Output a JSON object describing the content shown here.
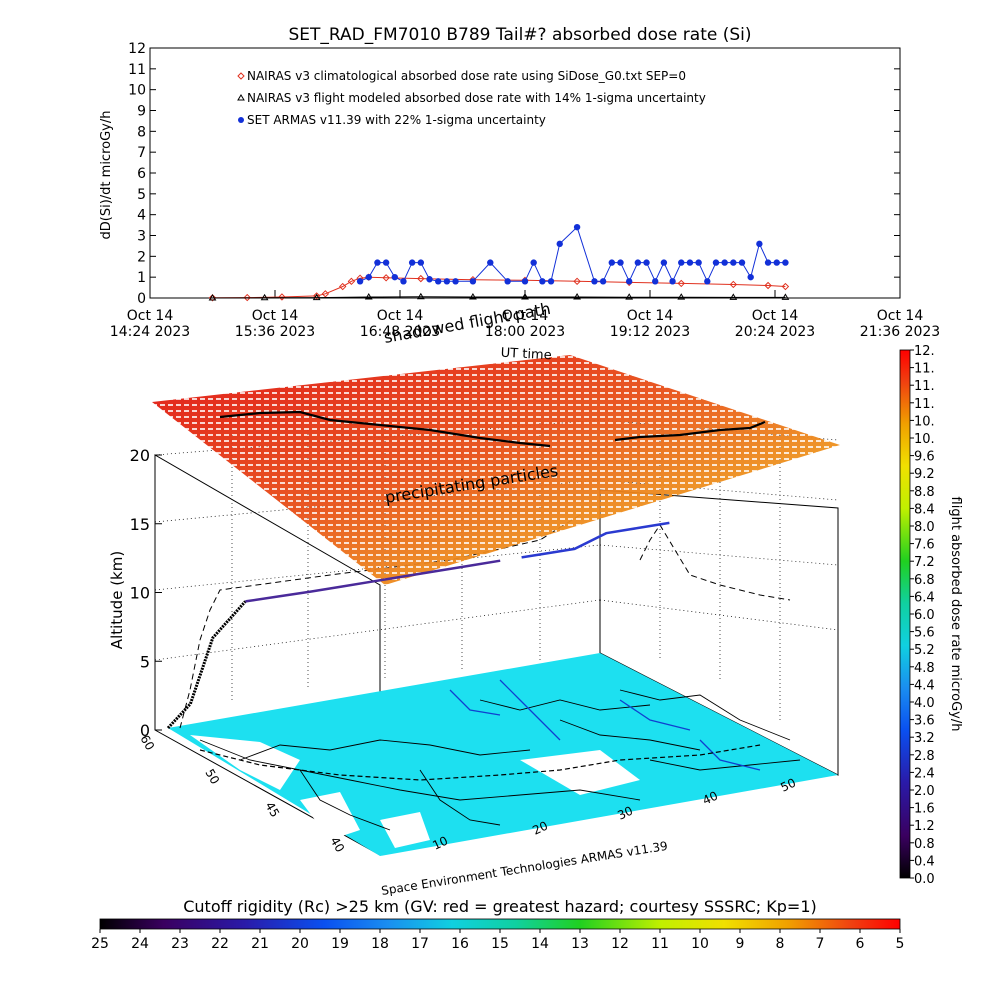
{
  "chart_data": [
    {
      "type": "scatter",
      "title": "SET_RAD_FM7010  B789 Tail#? absorbed dose rate (Si)",
      "ylabel": "dD(Si)/dt microGy/h",
      "ylim": [
        0,
        12
      ],
      "y_ticks": [
        "0",
        "1",
        "2",
        "3",
        "4",
        "5",
        "6",
        "7",
        "8",
        "9",
        "10",
        "11",
        "12"
      ],
      "xlim": [
        "14:24",
        "21:36"
      ],
      "x_ticks": [
        {
          "line1": "Oct 14",
          "line2": "14:24 2023"
        },
        {
          "line1": "Oct 14",
          "line2": "15:36 2023"
        },
        {
          "line1": "Oct 14",
          "line2": "16:48 2023"
        },
        {
          "line1": "Oct 14",
          "line2": "18:00 2023"
        },
        {
          "line1": "Oct 14",
          "line2": "19:12 2023"
        },
        {
          "line1": "Oct 14",
          "line2": "20:24 2023"
        },
        {
          "line1": "Oct 14",
          "line2": "21:36 2023"
        }
      ],
      "legend_position": "top-left",
      "series": [
        {
          "name": "NAIRAS v3 climatological absorbed dose rate using SiDose_G0.txt SEP=0",
          "color": "#e0301e",
          "marker": "diamond",
          "x": [
            "15:00",
            "15:20",
            "15:40",
            "16:00",
            "16:05",
            "16:15",
            "16:20",
            "16:25",
            "16:30",
            "16:40",
            "17:00",
            "17:30",
            "18:00",
            "18:30",
            "19:00",
            "19:30",
            "20:00",
            "20:20",
            "20:30"
          ],
          "y": [
            0.01,
            0.02,
            0.05,
            0.1,
            0.2,
            0.55,
            0.8,
            0.95,
            1.0,
            0.97,
            0.93,
            0.88,
            0.85,
            0.8,
            0.75,
            0.7,
            0.65,
            0.6,
            0.55
          ]
        },
        {
          "name": "NAIRAS v3 flight modeled absorbed dose rate with 14% 1-sigma uncertainty",
          "color": "#000000",
          "marker": "triangle",
          "x": [
            "15:00",
            "15:30",
            "16:00",
            "16:30",
            "17:00",
            "17:30",
            "18:00",
            "18:30",
            "19:00",
            "19:30",
            "20:00",
            "20:30"
          ],
          "y": [
            0.0,
            0.01,
            0.02,
            0.05,
            0.06,
            0.05,
            0.05,
            0.05,
            0.04,
            0.04,
            0.03,
            0.03
          ]
        },
        {
          "name": "SET ARMAS v11.39 with 22% 1-sigma uncertainty",
          "color": "#1230d8",
          "marker": "dot",
          "x": [
            "16:25",
            "16:30",
            "16:35",
            "16:40",
            "16:45",
            "16:50",
            "16:55",
            "17:00",
            "17:05",
            "17:10",
            "17:15",
            "17:20",
            "17:30",
            "17:40",
            "17:50",
            "18:00",
            "18:05",
            "18:10",
            "18:15",
            "18:20",
            "18:30",
            "18:40",
            "18:45",
            "18:50",
            "18:55",
            "19:00",
            "19:05",
            "19:10",
            "19:15",
            "19:20",
            "19:25",
            "19:30",
            "19:35",
            "19:40",
            "19:45",
            "19:50",
            "19:55",
            "20:00",
            "20:05",
            "20:10",
            "20:15",
            "20:20",
            "20:25",
            "20:30"
          ],
          "y": [
            0.8,
            1.0,
            1.7,
            1.7,
            1.0,
            0.8,
            1.7,
            1.7,
            0.9,
            0.8,
            0.8,
            0.8,
            0.8,
            1.7,
            0.8,
            0.8,
            1.7,
            0.8,
            0.8,
            2.6,
            3.4,
            0.8,
            0.8,
            1.7,
            1.7,
            0.8,
            1.7,
            1.7,
            0.8,
            1.7,
            0.8,
            1.7,
            1.7,
            1.7,
            0.8,
            1.7,
            1.7,
            1.7,
            1.7,
            1.0,
            2.6,
            1.7,
            1.7,
            1.7
          ]
        }
      ]
    },
    {
      "type": "scatter3d",
      "overlay_labels": [
        "shadowed flight path",
        "precipitating particles"
      ],
      "timeline_label": "UT time",
      "z_label": "Altitude (km)",
      "z_ticks": [
        "0",
        "5",
        "10",
        "15",
        "20"
      ],
      "lat_ticks": [
        "60",
        "50",
        "45",
        "40"
      ],
      "lon_ticks": [
        "10",
        "20",
        "30",
        "40",
        "50"
      ],
      "credit": "Space Environment Technologies ARMAS v11.39",
      "flight_path": {
        "lon": [
          5,
          7,
          9,
          12,
          15,
          18,
          21,
          24,
          27,
          30,
          33,
          36,
          38,
          40,
          43,
          46,
          49,
          52
        ],
        "lat": [
          52,
          51,
          50,
          49,
          48,
          47,
          46.5,
          46,
          45.5,
          45,
          44.5,
          44,
          43.5,
          43,
          42.5,
          42,
          41.5,
          41
        ],
        "alt_km": [
          0,
          2,
          8,
          11,
          11,
          11,
          11,
          11,
          11,
          11,
          11,
          11,
          11,
          11,
          11,
          12,
          12,
          12
        ]
      }
    },
    {
      "type": "colorbar",
      "label": "flight absorbed dose rate microGy/h",
      "ticks": [
        "0.0",
        "0.4",
        "0.8",
        "1.2",
        "1.6",
        "2.0",
        "2.4",
        "2.8",
        "3.2",
        "3.6",
        "4.0",
        "4.4",
        "4.8",
        "5.2",
        "5.6",
        "6.0",
        "6.4",
        "6.8",
        "7.2",
        "7.6",
        "8.0",
        "8.4",
        "8.8",
        "9.2",
        "9.6",
        "10.",
        "10.",
        "11.",
        "11.",
        "11.",
        "12."
      ],
      "range": [
        0,
        12
      ]
    },
    {
      "type": "colorbar",
      "label": "Cutoff rigidity (Rc) >25 km (GV: red = greatest hazard; courtesy SSSRC; Kp=1)",
      "ticks": [
        "25",
        "24",
        "23",
        "22",
        "21",
        "20",
        "19",
        "18",
        "17",
        "16",
        "15",
        "14",
        "13",
        "12",
        "11",
        "10",
        "9",
        "8",
        "7",
        "6",
        "5"
      ],
      "range": [
        25,
        5
      ]
    }
  ]
}
